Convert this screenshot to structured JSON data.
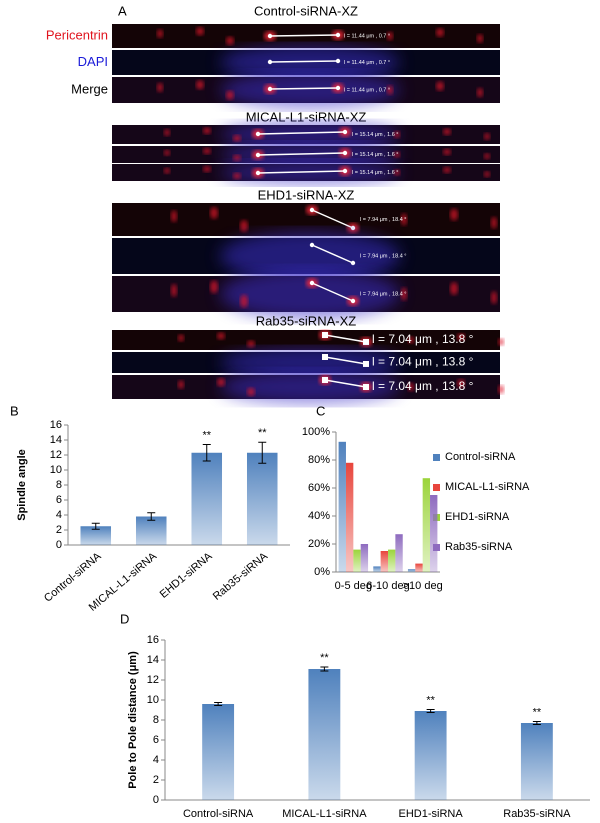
{
  "figure_a": {
    "label": "A",
    "row_labels": [
      "Pericentrin",
      "DAPI",
      "Merge"
    ],
    "groups": [
      {
        "title": "Control-siRNA-XZ",
        "measurements": [
          "l = 11.44 μm , 0.7 °",
          "l = 11.44 μm , 0.7 °",
          "l = 11.44 μm , 0.7 °"
        ]
      },
      {
        "title": "MICAL-L1-siRNA-XZ",
        "measurements": [
          "l = 15.14 μm , 1.6 °",
          "l = 15.14 μm , 1.6 °",
          "l = 15.14 μm , 1.6 °"
        ]
      },
      {
        "title": "EHD1-siRNA-XZ",
        "measurements": [
          "l = 7.94 μm , 18.4 °",
          "l = 7.94 μm , 18.4 °",
          "l = 7.94 μm , 18.4 °"
        ]
      },
      {
        "title": "Rab35-siRNA-XZ",
        "measurements": [
          "l = 7.04 μm , 13.8 °",
          "l = 7.04 μm , 13.8 °",
          "l = 7.04 μm , 13.8 °"
        ]
      }
    ]
  },
  "chart_data": [
    {
      "label": "B",
      "type": "bar",
      "y_label": "Spindle angle",
      "categories": [
        "Control-siRNA",
        "MICAL-L1-siRNA",
        "EHD1-siRNA",
        "Rab35-siRNA"
      ],
      "values": [
        2.5,
        3.8,
        12.3,
        12.3
      ],
      "errors": [
        0.4,
        0.5,
        1.1,
        1.4
      ],
      "annotations": [
        null,
        null,
        "**",
        "**"
      ],
      "color": "#4f81bd",
      "ylim": [
        0,
        16
      ],
      "yticks": [
        0,
        2,
        4,
        6,
        8,
        10,
        12,
        14,
        16
      ],
      "grid": false
    },
    {
      "label": "C",
      "type": "bar",
      "categories": [
        "0-5 deg",
        "6-10 deg",
        ">10 deg"
      ],
      "series": [
        {
          "name": "Control-siRNA",
          "color": "#4f81bd",
          "values": [
            93,
            4,
            2
          ]
        },
        {
          "name": "MICAL-L1-siRNA",
          "color": "#e8453c",
          "values": [
            78,
            15,
            6
          ]
        },
        {
          "name": "EHD1-siRNA",
          "color": "#9bd43a",
          "values": [
            16,
            16,
            67
          ]
        },
        {
          "name": "Rab35-siRNA",
          "color": "#8e6bbf",
          "values": [
            20,
            27,
            55
          ]
        }
      ],
      "ylim": [
        0,
        100
      ],
      "yticks": [
        {
          "value": 0,
          "label": "0%"
        },
        {
          "value": 20,
          "label": "20%"
        },
        {
          "value": 40,
          "label": "40%"
        },
        {
          "value": 60,
          "label": "60%"
        },
        {
          "value": 80,
          "label": "80%"
        },
        {
          "value": 100,
          "label": "100%"
        }
      ],
      "legend": "right",
      "grid": false
    },
    {
      "label": "D",
      "type": "bar",
      "y_label": "Pole to Pole distance (μm)",
      "categories": [
        "Control-siRNA",
        "MICAL-L1-siRNA",
        "EHD1-siRNA",
        "Rab35-siRNA"
      ],
      "values": [
        9.6,
        13.1,
        8.9,
        7.7
      ],
      "errors": [
        0.15,
        0.2,
        0.15,
        0.15
      ],
      "annotations": [
        null,
        "**",
        "**",
        "**"
      ],
      "color": "#4f81bd",
      "ylim": [
        0,
        16
      ],
      "yticks": [
        0,
        2,
        4,
        6,
        8,
        10,
        12,
        14,
        16
      ],
      "grid": false
    }
  ]
}
